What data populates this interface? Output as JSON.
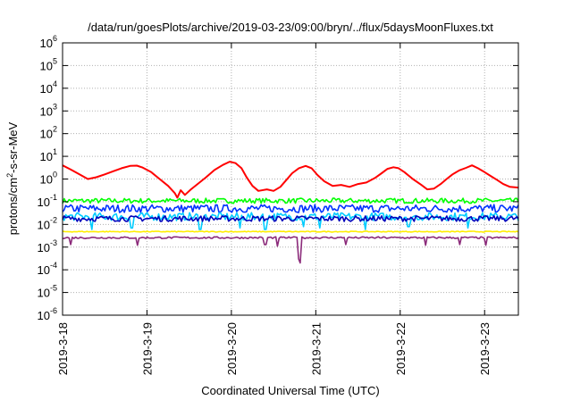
{
  "chart_data": {
    "type": "line",
    "title": "/data/run/goesPlots/archive/2019-03-23/09:00/bryn/../flux/5daysMoonFluxes.txt",
    "xlabel": "Coordinated Universal Time (UTC)",
    "ylabel": "protons/cm²-s-sr-MeV",
    "yscale": "log",
    "ylim": [
      1e-06,
      1000000.0
    ],
    "xlim_days": [
      0,
      5.4
    ],
    "x_tick_labels": [
      "2019-3-18",
      "2019-3-19",
      "2019-3-20",
      "2019-3-21",
      "2019-3-22",
      "2019-3-23"
    ],
    "y_ticks": [
      {
        "base": "10",
        "exp": "-6"
      },
      {
        "base": "10",
        "exp": "-5"
      },
      {
        "base": "10",
        "exp": "-4"
      },
      {
        "base": "10",
        "exp": "-3"
      },
      {
        "base": "10",
        "exp": "-2"
      },
      {
        "base": "10",
        "exp": "-1"
      },
      {
        "base": "10",
        "exp": "0"
      },
      {
        "base": "10",
        "exp": "1"
      },
      {
        "base": "10",
        "exp": "2"
      },
      {
        "base": "10",
        "exp": "3"
      },
      {
        "base": "10",
        "exp": "4"
      },
      {
        "base": "10",
        "exp": "5"
      },
      {
        "base": "10",
        "exp": "6"
      }
    ],
    "grid": true,
    "series": [
      {
        "color": "#ff0000",
        "values": [
          [
            0.0,
            4.0
          ],
          [
            0.1,
            2.6
          ],
          [
            0.2,
            1.6
          ],
          [
            0.3,
            1.0
          ],
          [
            0.4,
            1.2
          ],
          [
            0.5,
            1.6
          ],
          [
            0.6,
            2.2
          ],
          [
            0.7,
            3.0
          ],
          [
            0.8,
            3.8
          ],
          [
            0.88,
            3.9
          ],
          [
            0.95,
            3.2
          ],
          [
            1.05,
            2.0
          ],
          [
            1.15,
            1.0
          ],
          [
            1.25,
            0.5
          ],
          [
            1.33,
            0.24
          ],
          [
            1.36,
            0.15
          ],
          [
            1.4,
            0.32
          ],
          [
            1.45,
            0.2
          ],
          [
            1.52,
            0.35
          ],
          [
            1.6,
            0.6
          ],
          [
            1.7,
            1.2
          ],
          [
            1.8,
            2.5
          ],
          [
            1.9,
            4.2
          ],
          [
            1.98,
            5.8
          ],
          [
            2.05,
            5.0
          ],
          [
            2.12,
            3.0
          ],
          [
            2.18,
            1.2
          ],
          [
            2.25,
            0.5
          ],
          [
            2.32,
            0.3
          ],
          [
            2.42,
            0.35
          ],
          [
            2.5,
            0.3
          ],
          [
            2.58,
            0.45
          ],
          [
            2.65,
            0.9
          ],
          [
            2.72,
            1.8
          ],
          [
            2.8,
            3.0
          ],
          [
            2.88,
            3.8
          ],
          [
            2.95,
            3.0
          ],
          [
            3.02,
            1.5
          ],
          [
            3.1,
            0.8
          ],
          [
            3.2,
            0.5
          ],
          [
            3.3,
            0.55
          ],
          [
            3.4,
            0.45
          ],
          [
            3.5,
            0.6
          ],
          [
            3.6,
            0.7
          ],
          [
            3.7,
            1.1
          ],
          [
            3.78,
            1.8
          ],
          [
            3.85,
            2.8
          ],
          [
            3.92,
            3.3
          ],
          [
            3.98,
            3.0
          ],
          [
            4.05,
            2.0
          ],
          [
            4.15,
            1.0
          ],
          [
            4.25,
            0.55
          ],
          [
            4.32,
            0.35
          ],
          [
            4.4,
            0.38
          ],
          [
            4.48,
            0.6
          ],
          [
            4.55,
            1.0
          ],
          [
            4.62,
            1.6
          ],
          [
            4.7,
            2.4
          ],
          [
            4.78,
            3.1
          ],
          [
            4.85,
            4.0
          ],
          [
            4.92,
            3.0
          ],
          [
            5.0,
            2.0
          ],
          [
            5.08,
            1.3
          ],
          [
            5.15,
            0.9
          ],
          [
            5.22,
            0.6
          ],
          [
            5.3,
            0.45
          ],
          [
            5.4,
            0.42
          ]
        ]
      },
      {
        "color": "#00ff00",
        "base": 0.11,
        "spread": 0.22,
        "spikes": []
      },
      {
        "color": "#0033ff",
        "base": 0.05,
        "spread": 0.35,
        "spikes": []
      },
      {
        "color": "#00ccff",
        "base": 0.022,
        "spread": 0.35,
        "spikes": [
          [
            0.35,
            0.006
          ],
          [
            0.82,
            0.007
          ],
          [
            1.63,
            0.006
          ],
          [
            2.1,
            0.007
          ],
          [
            2.4,
            0.006
          ],
          [
            2.85,
            0.008
          ],
          [
            3.05,
            0.007
          ],
          [
            3.58,
            0.006
          ],
          [
            4.1,
            0.008
          ],
          [
            4.8,
            0.007
          ]
        ]
      },
      {
        "color": "#0000bb",
        "base": 0.018,
        "spread": 0.25,
        "spikes": []
      },
      {
        "color": "#ffee00",
        "base": 0.0048,
        "spread": 0.04,
        "spikes": []
      },
      {
        "color": "#8b2a7a",
        "base": 0.0026,
        "spread": 0.08,
        "spikes": [
          [
            0.1,
            0.0013
          ],
          [
            0.88,
            0.0012
          ],
          [
            2.4,
            0.0013
          ],
          [
            2.55,
            0.0011
          ],
          [
            2.8,
            0.0003
          ],
          [
            2.81,
            0.0002
          ],
          [
            3.35,
            0.0013
          ],
          [
            4.3,
            0.0012
          ],
          [
            4.7,
            0.0013
          ],
          [
            5.02,
            0.0012
          ]
        ]
      }
    ]
  }
}
